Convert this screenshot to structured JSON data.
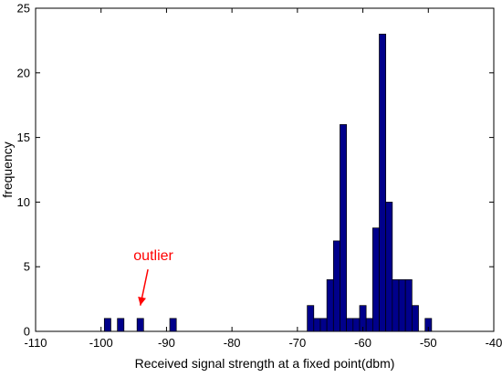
{
  "chart_data": {
    "type": "bar",
    "title": "",
    "xlabel": "Received signal strength at a fixed point(dbm)",
    "ylabel": "frequency",
    "xlim": [
      -110,
      -40
    ],
    "ylim": [
      0,
      25
    ],
    "xticks": [
      -110,
      -100,
      -90,
      -80,
      -70,
      -60,
      -50,
      -40
    ],
    "yticks": [
      0,
      5,
      10,
      15,
      20,
      25
    ],
    "grid": false,
    "bin_width": 1,
    "bar_color": "#00008b",
    "bar_edge_color": "#000000",
    "series": [
      {
        "x": [
          -99,
          -97,
          -94,
          -89,
          -68,
          -67,
          -66,
          -65,
          -64,
          -63,
          -62,
          -61,
          -60,
          -59,
          -58,
          -57,
          -56,
          -55,
          -54,
          -53,
          -52,
          -50
        ],
        "values": [
          1,
          1,
          1,
          1,
          2,
          1,
          1,
          4,
          7,
          16,
          1,
          1,
          2,
          1,
          8,
          23,
          10,
          4,
          4,
          4,
          2,
          1
        ]
      }
    ],
    "annotations": [
      {
        "text": "outlier",
        "color": "#ff0000",
        "x": -92,
        "y": 5.5,
        "arrow_to": [
          -94,
          2
        ]
      }
    ]
  }
}
